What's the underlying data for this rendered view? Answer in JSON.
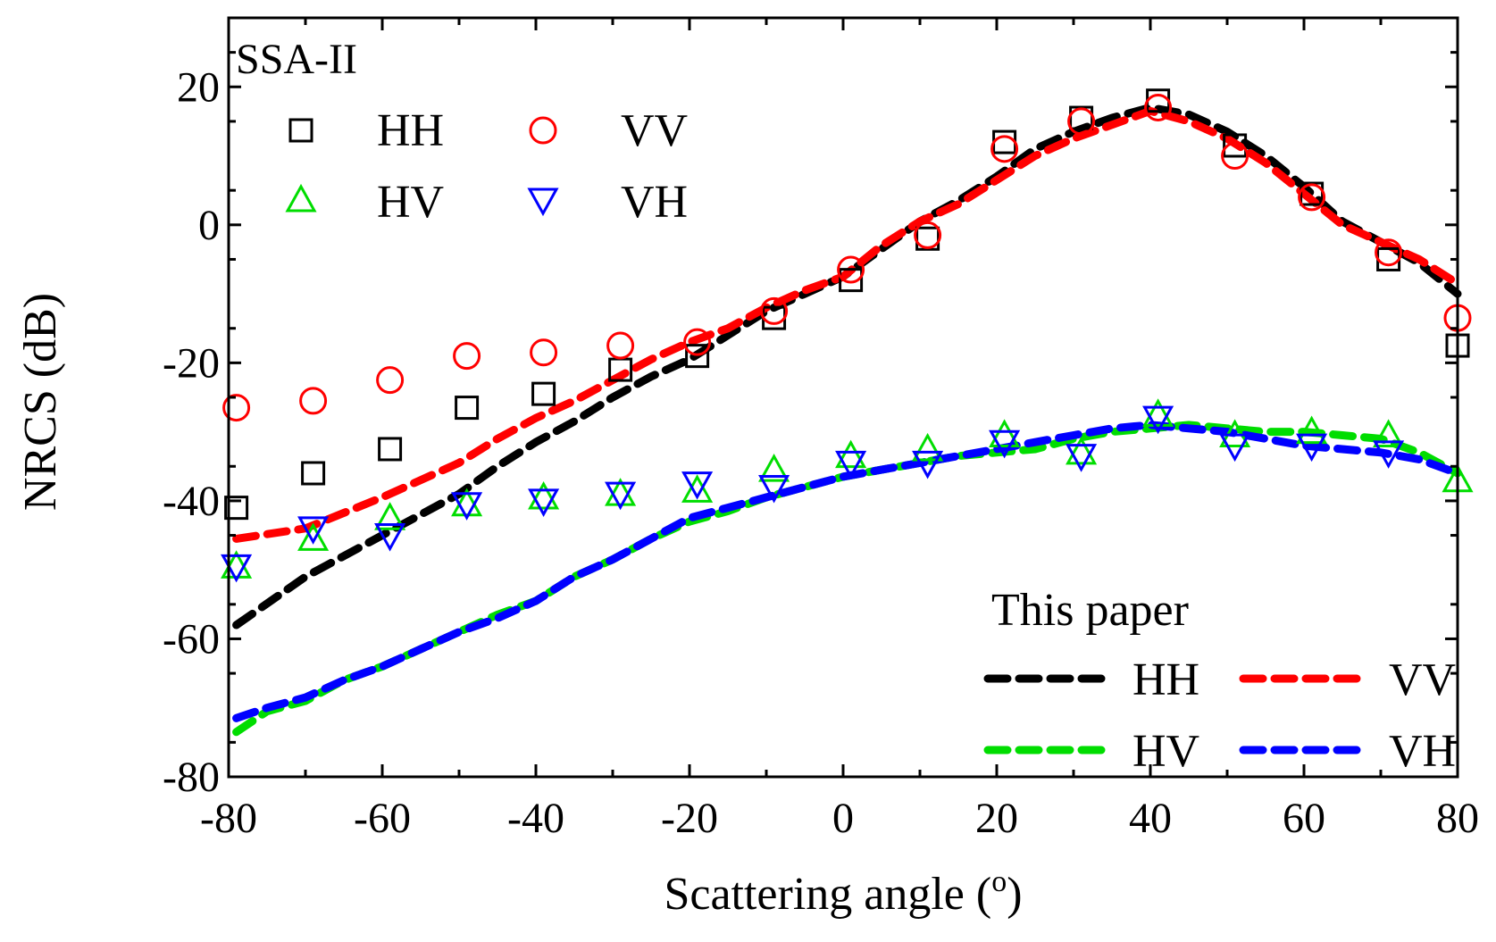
{
  "chart_data": {
    "type": "scatter+line",
    "panel_label": "SSA-II",
    "xlabel": "Scattering angle (°)",
    "xlabel_parts": {
      "before": "Scattering angle (",
      "sup": "o",
      "after": ")"
    },
    "ylabel": "NRCS (dB)",
    "xlim": [
      -80,
      80
    ],
    "ylim": [
      -80,
      30
    ],
    "xticks": [
      "-80",
      "-60",
      "-40",
      "-20",
      "0",
      "20",
      "40",
      "60",
      "80"
    ],
    "xtick_values": [
      -80,
      -60,
      -40,
      -20,
      0,
      20,
      40,
      60,
      80
    ],
    "yticks": [
      "20",
      "0",
      "-20",
      "-40",
      "-60",
      "-80"
    ],
    "ytick_values": [
      20,
      0,
      -20,
      -40,
      -60,
      -80
    ],
    "colors": {
      "HH": "#000000",
      "VV": "#ff0000",
      "HV": "#00dd00",
      "VH": "#0000ff"
    },
    "markers": {
      "HH": "square",
      "VV": "circle",
      "HV": "triangle-up",
      "VH": "triangle-down"
    },
    "marker_series": [
      {
        "name": "HH",
        "x": [
          -79,
          -69,
          -59,
          -49,
          -39,
          -29,
          -19,
          -9,
          1,
          11,
          21,
          31,
          41,
          51,
          61,
          71,
          80
        ],
        "y": [
          -41,
          -36,
          -32.5,
          -26.5,
          -24.5,
          -21,
          -19,
          -13.5,
          -8,
          -2,
          12,
          15.5,
          18,
          11.5,
          4.5,
          -5,
          -17.5
        ]
      },
      {
        "name": "VV",
        "x": [
          -79,
          -69,
          -59,
          -49,
          -39,
          -29,
          -19,
          -9,
          1,
          11,
          21,
          31,
          41,
          51,
          61,
          71,
          80
        ],
        "y": [
          -26.5,
          -25.5,
          -22.5,
          -19,
          -18.5,
          -17.5,
          -17,
          -12.5,
          -6.5,
          -1.5,
          11,
          15,
          17,
          10,
          4,
          -4,
          -13.5
        ]
      },
      {
        "name": "HV",
        "x": [
          -79,
          -69,
          -59,
          -49,
          -39,
          -29,
          -19,
          -9,
          1,
          11,
          21,
          31,
          41,
          51,
          61,
          71,
          80
        ],
        "y": [
          -49.5,
          -45.5,
          -42.5,
          -40.5,
          -39.5,
          -39,
          -38.5,
          -35.5,
          -33.5,
          -32.5,
          -30.5,
          -33,
          -27.5,
          -30.5,
          -30,
          -30.5,
          -37
        ]
      },
      {
        "name": "VH",
        "x": [
          -79,
          -69,
          -59,
          -49,
          -39,
          -29,
          -19,
          -9,
          1,
          11,
          21,
          31,
          41,
          51,
          61,
          71
        ],
        "y": [
          -49.5,
          -44,
          -45,
          -40.5,
          -40,
          -39,
          -37.5,
          -38,
          -34.5,
          -34.5,
          -31.5,
          -33.5,
          -28,
          -32,
          -32,
          -33
        ]
      }
    ],
    "line_series": [
      {
        "name": "HH",
        "x": [
          -79,
          -70,
          -60,
          -50,
          -45,
          -40,
          -35,
          -30,
          -25,
          -20,
          -15,
          -10,
          -5,
          0,
          5,
          10,
          15,
          20,
          25,
          30,
          35,
          40,
          45,
          50,
          55,
          60,
          65,
          70,
          75,
          80
        ],
        "y": [
          -58,
          -51,
          -45,
          -39,
          -35,
          -31.5,
          -28.5,
          -25,
          -22,
          -19.5,
          -16,
          -12.5,
          -10,
          -7.5,
          -3.5,
          0.5,
          3.5,
          7,
          11,
          13.5,
          15.5,
          17,
          16,
          13.5,
          10,
          5.5,
          0.5,
          -2.5,
          -5.5,
          -10
        ]
      },
      {
        "name": "VV",
        "x": [
          -79,
          -70,
          -60,
          -50,
          -45,
          -40,
          -35,
          -30,
          -25,
          -20,
          -15,
          -10,
          -5,
          0,
          5,
          10,
          15,
          20,
          25,
          30,
          35,
          40,
          45,
          50,
          55,
          60,
          65,
          70,
          75,
          80
        ],
        "y": [
          -45.5,
          -44,
          -39.5,
          -34.5,
          -31,
          -28,
          -25.5,
          -22.5,
          -19.5,
          -17,
          -15,
          -12,
          -9.5,
          -7.5,
          -3,
          0.5,
          3,
          6.5,
          10,
          12.5,
          14.5,
          16.5,
          15,
          12.5,
          9,
          4.5,
          0,
          -2.5,
          -5,
          -8.5
        ]
      },
      {
        "name": "HV",
        "x": [
          -79,
          -75,
          -70,
          -65,
          -60,
          -55,
          -50,
          -45,
          -40,
          -35,
          -30,
          -25,
          -20,
          -15,
          -10,
          -5,
          0,
          5,
          10,
          15,
          20,
          25,
          30,
          35,
          40,
          45,
          50,
          55,
          60,
          65,
          70,
          75,
          80
        ],
        "y": [
          -73.5,
          -70.5,
          -69,
          -66,
          -64,
          -61.5,
          -59,
          -56.5,
          -54.5,
          -51,
          -48.5,
          -45.5,
          -43,
          -41.5,
          -39.5,
          -38,
          -36.5,
          -35.5,
          -34.5,
          -33.5,
          -33,
          -32.5,
          -31,
          -30,
          -29.5,
          -29,
          -29.5,
          -30,
          -30,
          -30.5,
          -31,
          -33,
          -36
        ]
      },
      {
        "name": "VH",
        "x": [
          -79,
          -75,
          -70,
          -65,
          -60,
          -55,
          -50,
          -45,
          -40,
          -35,
          -30,
          -25,
          -20,
          -15,
          -10,
          -5,
          0,
          5,
          10,
          15,
          20,
          25,
          30,
          35,
          40,
          45,
          50,
          55,
          60,
          65,
          70,
          75,
          80
        ],
        "y": [
          -71.5,
          -70,
          -68.5,
          -66,
          -64,
          -61.5,
          -59,
          -57,
          -54.5,
          -51,
          -48.5,
          -45.5,
          -42.5,
          -41,
          -39.5,
          -38,
          -36.5,
          -35.5,
          -34.5,
          -33.5,
          -32.5,
          -31.5,
          -30.5,
          -29.5,
          -29,
          -29.5,
          -30,
          -31,
          -32,
          -32.5,
          -33,
          -34,
          -36
        ]
      }
    ],
    "legend_markers": {
      "position": "top-left",
      "entries": [
        "HH",
        "VV",
        "HV",
        "VH"
      ]
    },
    "legend_lines": {
      "position": "bottom-right",
      "title": "This paper",
      "entries": [
        "HH",
        "VV",
        "HV",
        "VH"
      ]
    }
  }
}
